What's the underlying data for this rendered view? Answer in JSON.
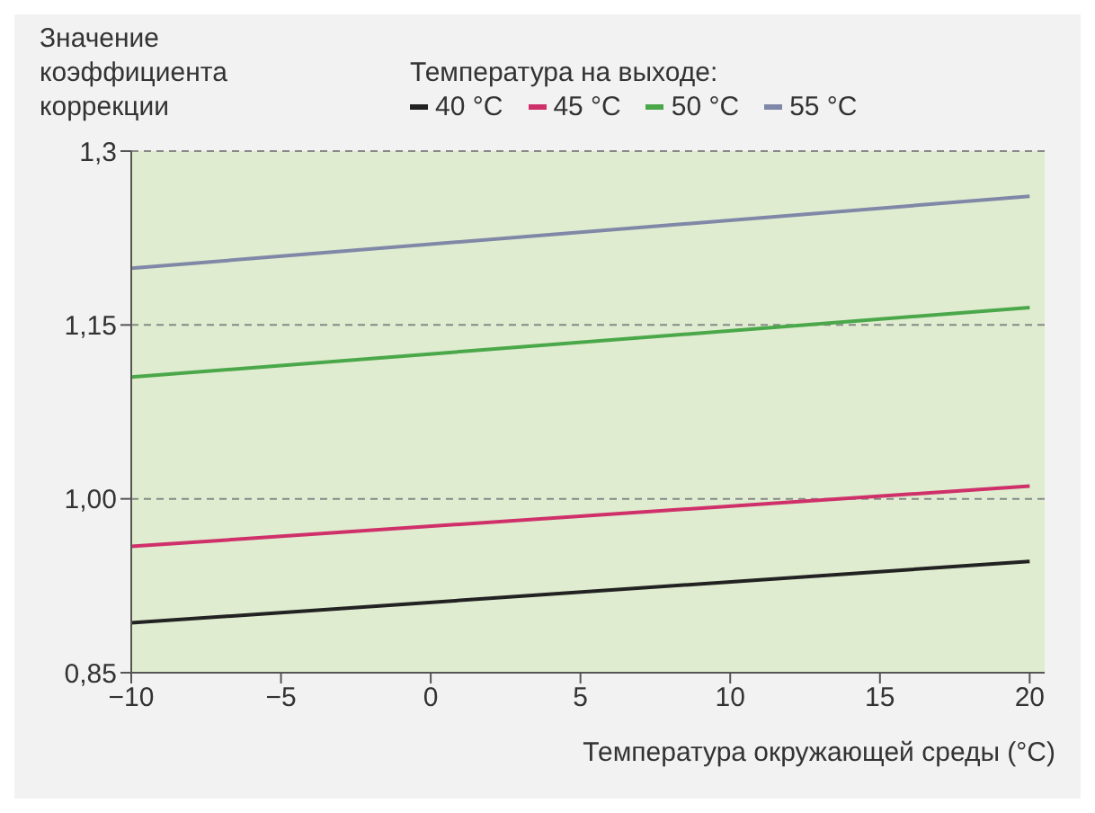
{
  "chart_data": {
    "type": "line",
    "ylabel": "Значение коэффициента коррекции",
    "xlabel": "Температура окружающей среды (°C)",
    "legend_title": "Температура на выходе:",
    "legend": "top right",
    "grid": "y",
    "marker": "none",
    "line_style": "solid",
    "x": [
      -10,
      20
    ],
    "xlim": [
      -10,
      20.5
    ],
    "xticks": [
      -10,
      -5,
      0,
      5,
      10,
      15,
      20
    ],
    "ylim": [
      0.85,
      1.3
    ],
    "yticks": [
      {
        "value": 0.85,
        "label": "0,85"
      },
      {
        "value": 1.0,
        "label": "1,00"
      },
      {
        "value": 1.15,
        "label": "1,15"
      },
      {
        "value": 1.3,
        "label": "1,3"
      }
    ],
    "series": [
      {
        "name": "40 °C",
        "color": "#222222",
        "values": [
          0.893,
          0.946
        ]
      },
      {
        "name": "45 °C",
        "color": "#d0306a",
        "values": [
          0.959,
          1.011
        ]
      },
      {
        "name": "50 °C",
        "color": "#4aa84a",
        "values": [
          1.105,
          1.165
        ]
      },
      {
        "name": "55 °C",
        "color": "#8088a8",
        "values": [
          1.199,
          1.261
        ]
      }
    ]
  }
}
